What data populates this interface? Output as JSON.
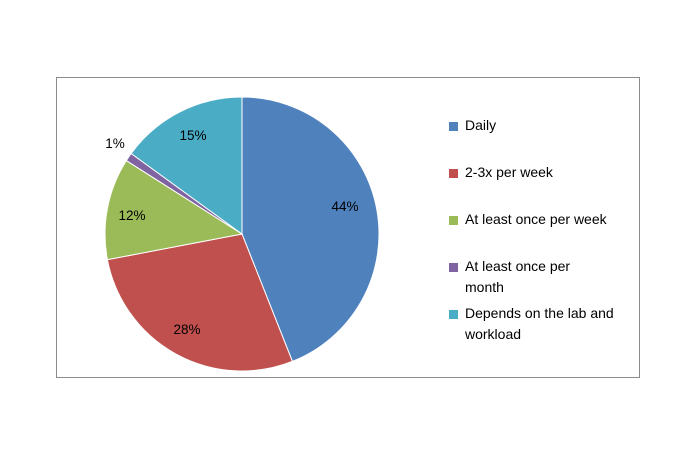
{
  "chart_data": {
    "type": "pie",
    "categories": [
      "Daily",
      "2-3x per week",
      "At least once per week",
      "At least once per month",
      "Depends on the lab and workload"
    ],
    "values": [
      44,
      28,
      12,
      1,
      15
    ],
    "data_labels": [
      "44%",
      "28%",
      "12%",
      "1%",
      "15%"
    ],
    "colors": [
      "#4F81BD",
      "#C0504D",
      "#9BBB59",
      "#8064A2",
      "#4BACC6"
    ],
    "start_angle_deg": 0,
    "direction": "clockwise",
    "legend_position": "right"
  }
}
